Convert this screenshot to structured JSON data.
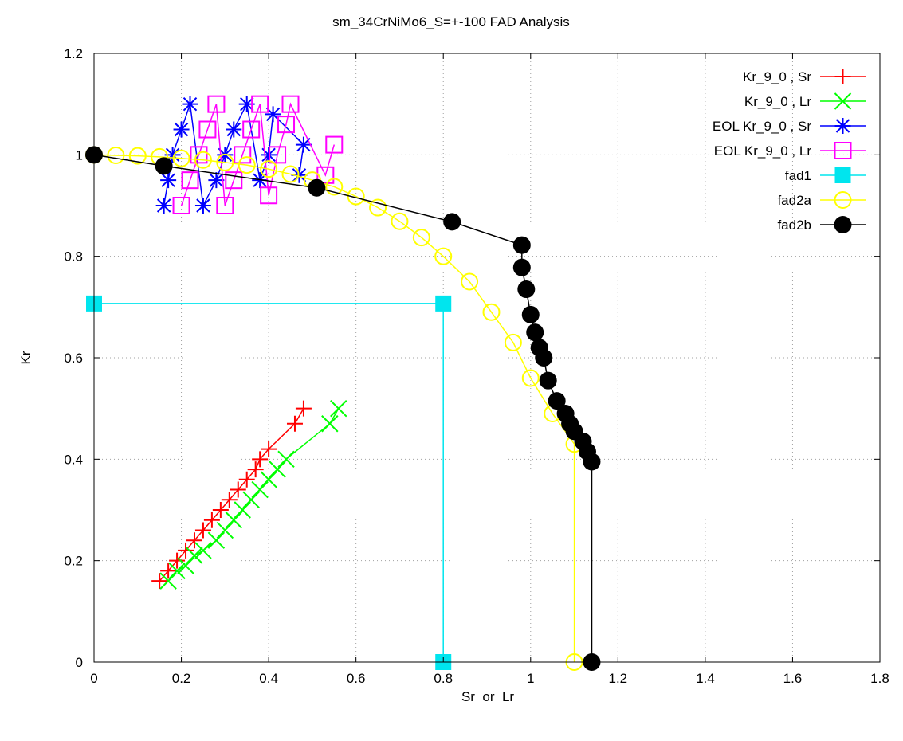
{
  "chart_data": {
    "type": "scatter",
    "title": "sm_34CrNiMo6_S=+-100 FAD Analysis",
    "xlabel": "Sr  or  Lr",
    "ylabel": "Kr",
    "xlim": [
      0,
      1.8
    ],
    "ylim": [
      0,
      1.2
    ],
    "x_ticks": [
      "0",
      "0.2",
      "0.4",
      "0.6",
      "0.8",
      "1",
      "1.2",
      "1.4",
      "1.6",
      "1.8"
    ],
    "y_ticks": [
      "0",
      "0.2",
      "0.4",
      "0.6",
      "0.8",
      "1",
      "1.2"
    ],
    "grid": true,
    "legend_position": "top-right",
    "series": [
      {
        "name": "Kr_9_0 , Sr",
        "color": "#ff0000",
        "marker": "plus",
        "line": true,
        "points": [
          [
            0.15,
            0.16
          ],
          [
            0.17,
            0.18
          ],
          [
            0.19,
            0.2
          ],
          [
            0.21,
            0.22
          ],
          [
            0.23,
            0.24
          ],
          [
            0.25,
            0.26
          ],
          [
            0.27,
            0.28
          ],
          [
            0.29,
            0.3
          ],
          [
            0.31,
            0.32
          ],
          [
            0.33,
            0.34
          ],
          [
            0.35,
            0.36
          ],
          [
            0.37,
            0.38
          ],
          [
            0.38,
            0.4
          ],
          [
            0.4,
            0.42
          ],
          [
            0.46,
            0.47
          ],
          [
            0.48,
            0.5
          ]
        ]
      },
      {
        "name": "Kr_9_0 , Lr",
        "color": "#00ff00",
        "marker": "cross",
        "line": true,
        "points": [
          [
            0.17,
            0.16
          ],
          [
            0.19,
            0.18
          ],
          [
            0.21,
            0.19
          ],
          [
            0.23,
            0.21
          ],
          [
            0.25,
            0.22
          ],
          [
            0.28,
            0.24
          ],
          [
            0.3,
            0.26
          ],
          [
            0.32,
            0.28
          ],
          [
            0.34,
            0.3
          ],
          [
            0.36,
            0.32
          ],
          [
            0.38,
            0.34
          ],
          [
            0.4,
            0.36
          ],
          [
            0.42,
            0.38
          ],
          [
            0.44,
            0.4
          ],
          [
            0.54,
            0.47
          ],
          [
            0.56,
            0.5
          ]
        ]
      },
      {
        "name": "EOL Kr_9_0 , Sr",
        "color": "#0000ff",
        "marker": "star",
        "line": true,
        "points": [
          [
            0.16,
            0.9
          ],
          [
            0.17,
            0.95
          ],
          [
            0.18,
            1.0
          ],
          [
            0.2,
            1.05
          ],
          [
            0.22,
            1.1
          ],
          [
            0.25,
            0.9
          ],
          [
            0.28,
            0.95
          ],
          [
            0.3,
            1.0
          ],
          [
            0.32,
            1.05
          ],
          [
            0.35,
            1.1
          ],
          [
            0.38,
            0.95
          ],
          [
            0.4,
            1.0
          ],
          [
            0.41,
            1.08
          ],
          [
            0.48,
            1.02
          ],
          [
            0.47,
            0.96
          ]
        ]
      },
      {
        "name": "EOL Kr_9_0 , Lr",
        "color": "#ff00ff",
        "marker": "square",
        "line": true,
        "points": [
          [
            0.2,
            0.9
          ],
          [
            0.22,
            0.95
          ],
          [
            0.24,
            1.0
          ],
          [
            0.26,
            1.05
          ],
          [
            0.28,
            1.1
          ],
          [
            0.3,
            0.9
          ],
          [
            0.32,
            0.95
          ],
          [
            0.34,
            1.0
          ],
          [
            0.36,
            1.05
          ],
          [
            0.38,
            1.1
          ],
          [
            0.4,
            0.92
          ],
          [
            0.42,
            1.0
          ],
          [
            0.44,
            1.06
          ],
          [
            0.45,
            1.1
          ],
          [
            0.53,
            0.96
          ],
          [
            0.55,
            1.02
          ]
        ]
      },
      {
        "name": "fad1",
        "color": "#00e5ee",
        "marker": "filled-square",
        "line": true,
        "points": [
          [
            0.0,
            0.707
          ],
          [
            0.8,
            0.707
          ],
          [
            0.8,
            0.0
          ]
        ]
      },
      {
        "name": "fad2a",
        "color": "#ffff00",
        "marker": "circle",
        "line": true,
        "points": [
          [
            0.0,
            1.0
          ],
          [
            0.05,
            0.999
          ],
          [
            0.1,
            0.998
          ],
          [
            0.15,
            0.996
          ],
          [
            0.2,
            0.993
          ],
          [
            0.25,
            0.99
          ],
          [
            0.3,
            0.985
          ],
          [
            0.35,
            0.98
          ],
          [
            0.4,
            0.972
          ],
          [
            0.45,
            0.962
          ],
          [
            0.5,
            0.95
          ],
          [
            0.55,
            0.937
          ],
          [
            0.6,
            0.918
          ],
          [
            0.65,
            0.896
          ],
          [
            0.7,
            0.869
          ],
          [
            0.75,
            0.837
          ],
          [
            0.8,
            0.8
          ],
          [
            0.86,
            0.75
          ],
          [
            0.91,
            0.69
          ],
          [
            0.96,
            0.63
          ],
          [
            1.0,
            0.56
          ],
          [
            1.05,
            0.49
          ],
          [
            1.1,
            0.43
          ],
          [
            1.1,
            0.0
          ]
        ]
      },
      {
        "name": "fad2b",
        "color": "#000000",
        "marker": "filled-circle",
        "line": true,
        "points": [
          [
            0.0,
            1.0
          ],
          [
            0.16,
            0.978
          ],
          [
            0.51,
            0.935
          ],
          [
            0.82,
            0.868
          ],
          [
            0.98,
            0.822
          ],
          [
            0.98,
            0.778
          ],
          [
            0.99,
            0.735
          ],
          [
            1.0,
            0.685
          ],
          [
            1.01,
            0.65
          ],
          [
            1.02,
            0.62
          ],
          [
            1.03,
            0.6
          ],
          [
            1.04,
            0.555
          ],
          [
            1.06,
            0.515
          ],
          [
            1.08,
            0.49
          ],
          [
            1.09,
            0.47
          ],
          [
            1.1,
            0.455
          ],
          [
            1.12,
            0.435
          ],
          [
            1.13,
            0.415
          ],
          [
            1.14,
            0.395
          ],
          [
            1.14,
            0.0
          ]
        ]
      }
    ]
  }
}
